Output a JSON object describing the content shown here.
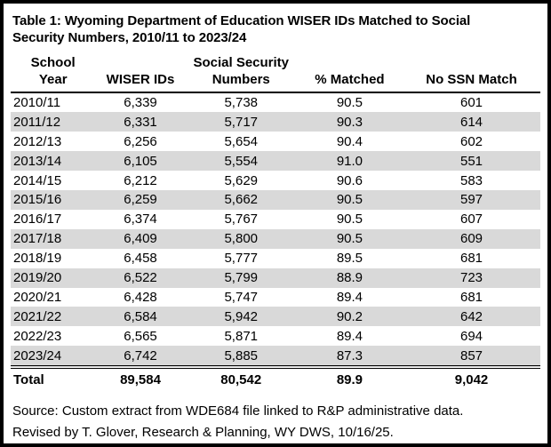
{
  "title": "Table 1: Wyoming Department of Education WISER IDs Matched to Social\nSecurity Numbers, 2010/11 to 2023/24",
  "table": {
    "headers": [
      "School\nYear",
      "WISER IDs",
      "Social Security\nNumbers",
      "% Matched",
      "No SSN Match"
    ],
    "rows": [
      {
        "school_year": "2010/11",
        "wiser_ids": "6,339",
        "ssn": "5,738",
        "pct_matched": "90.5",
        "no_ssn_match": "601"
      },
      {
        "school_year": "2011/12",
        "wiser_ids": "6,331",
        "ssn": "5,717",
        "pct_matched": "90.3",
        "no_ssn_match": "614"
      },
      {
        "school_year": "2012/13",
        "wiser_ids": "6,256",
        "ssn": "5,654",
        "pct_matched": "90.4",
        "no_ssn_match": "602"
      },
      {
        "school_year": "2013/14",
        "wiser_ids": "6,105",
        "ssn": "5,554",
        "pct_matched": "91.0",
        "no_ssn_match": "551"
      },
      {
        "school_year": "2014/15",
        "wiser_ids": "6,212",
        "ssn": "5,629",
        "pct_matched": "90.6",
        "no_ssn_match": "583"
      },
      {
        "school_year": "2015/16",
        "wiser_ids": "6,259",
        "ssn": "5,662",
        "pct_matched": "90.5",
        "no_ssn_match": "597"
      },
      {
        "school_year": "2016/17",
        "wiser_ids": "6,374",
        "ssn": "5,767",
        "pct_matched": "90.5",
        "no_ssn_match": "607"
      },
      {
        "school_year": "2017/18",
        "wiser_ids": "6,409",
        "ssn": "5,800",
        "pct_matched": "90.5",
        "no_ssn_match": "609"
      },
      {
        "school_year": "2018/19",
        "wiser_ids": "6,458",
        "ssn": "5,777",
        "pct_matched": "89.5",
        "no_ssn_match": "681"
      },
      {
        "school_year": "2019/20",
        "wiser_ids": "6,522",
        "ssn": "5,799",
        "pct_matched": "88.9",
        "no_ssn_match": "723"
      },
      {
        "school_year": "2020/21",
        "wiser_ids": "6,428",
        "ssn": "5,747",
        "pct_matched": "89.4",
        "no_ssn_match": "681"
      },
      {
        "school_year": "2021/22",
        "wiser_ids": "6,584",
        "ssn": "5,942",
        "pct_matched": "90.2",
        "no_ssn_match": "642"
      },
      {
        "school_year": "2022/23",
        "wiser_ids": "6,565",
        "ssn": "5,871",
        "pct_matched": "89.4",
        "no_ssn_match": "694"
      },
      {
        "school_year": "2023/24",
        "wiser_ids": "6,742",
        "ssn": "5,885",
        "pct_matched": "87.3",
        "no_ssn_match": "857"
      }
    ],
    "total": {
      "school_year": "Total",
      "wiser_ids": "89,584",
      "ssn": "80,542",
      "pct_matched": "89.9",
      "no_ssn_match": "9,042"
    }
  },
  "footer": {
    "source_line": "Source: Custom extract from WDE684 file linked to R&P administrative data.",
    "revised_line": "Revised by T. Glover, Research & Planning, WY DWS, 10/16/25."
  },
  "colors": {
    "stripe": "#d9d9d9",
    "border": "#000000",
    "background": "#ffffff",
    "text": "#000000"
  },
  "chart_data": {
    "type": "table",
    "title": "Table 1: Wyoming Department of Education WISER IDs Matched to Social Security Numbers, 2010/11 to 2023/24",
    "columns": [
      "School Year",
      "WISER IDs",
      "Social Security Numbers",
      "% Matched",
      "No SSN Match"
    ],
    "rows": [
      [
        "2010/11",
        6339,
        5738,
        90.5,
        601
      ],
      [
        "2011/12",
        6331,
        5717,
        90.3,
        614
      ],
      [
        "2012/13",
        6256,
        5654,
        90.4,
        602
      ],
      [
        "2013/14",
        6105,
        5554,
        91.0,
        551
      ],
      [
        "2014/15",
        6212,
        5629,
        90.6,
        583
      ],
      [
        "2015/16",
        6259,
        5662,
        90.5,
        597
      ],
      [
        "2016/17",
        6374,
        5767,
        90.5,
        607
      ],
      [
        "2017/18",
        6409,
        5800,
        90.5,
        609
      ],
      [
        "2018/19",
        6458,
        5777,
        89.5,
        681
      ],
      [
        "2019/20",
        6522,
        5799,
        88.9,
        723
      ],
      [
        "2020/21",
        6428,
        5747,
        89.4,
        681
      ],
      [
        "2021/22",
        6584,
        5942,
        90.2,
        642
      ],
      [
        "2022/23",
        6565,
        5871,
        89.4,
        694
      ],
      [
        "2023/24",
        6742,
        5885,
        87.3,
        857
      ]
    ],
    "total_row": [
      "Total",
      89584,
      80542,
      89.9,
      9042
    ],
    "source": "Custom extract from WDE684 file linked to R&P administrative data. Revised by T. Glover, Research & Planning, WY DWS, 10/16/25.",
    "stripe_rows": "alternating gray starting with second data row"
  }
}
